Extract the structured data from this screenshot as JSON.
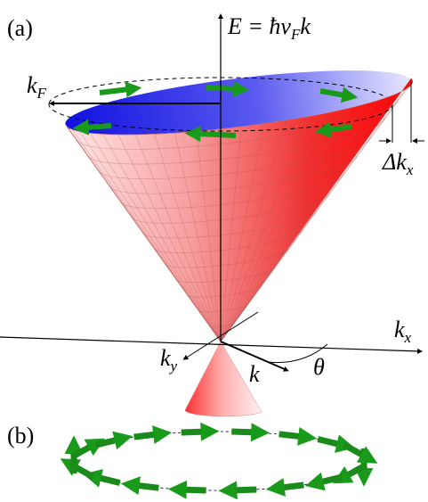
{
  "panel_a": {
    "label": "(a)",
    "energy_axis": {
      "lhs": "E = ħv",
      "sub": "F",
      "rhs": "k"
    },
    "fermi_wavevector": {
      "main": "k",
      "sub": "F"
    },
    "shift": {
      "main": "Δk",
      "sub": "x"
    },
    "kx_axis": {
      "main": "k",
      "sub": "x"
    },
    "ky_axis": {
      "main": "k",
      "sub": "y"
    },
    "k_vector": "k",
    "angle": "θ"
  },
  "panel_b": {
    "label": "(b)"
  }
}
